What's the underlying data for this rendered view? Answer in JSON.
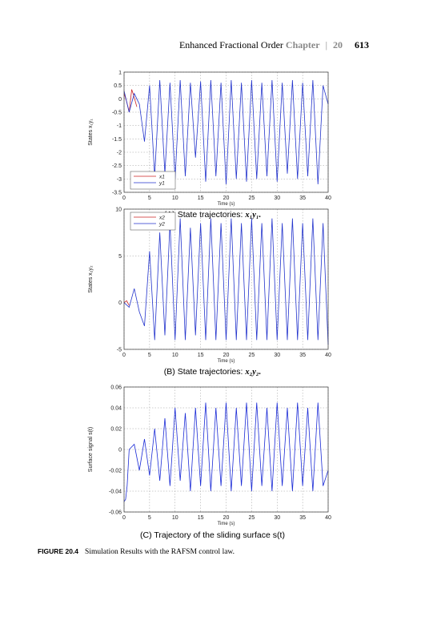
{
  "header": {
    "title": "Enhanced Fractional Order",
    "chapter_label": "Chapter",
    "chapter_number": "20",
    "page_number": "613"
  },
  "figure": {
    "label": "FIGURE 20.4",
    "caption": "Simulation Results with the RAFSM control law."
  },
  "panels": [
    {
      "caption_prefix": "(A) State trajectories: ",
      "caption_math": "x₁y₁.",
      "caption_plain": ""
    },
    {
      "caption_prefix": "(B) State trajectories: ",
      "caption_math": "x₂y₂.",
      "caption_plain": ""
    },
    {
      "caption_prefix": "",
      "caption_math": "",
      "caption_plain": "(C) Trajectory of the sliding surface s(t)"
    }
  ],
  "chart_data": [
    {
      "type": "line",
      "xlabel": "Time (s)",
      "ylabel": "States x₁y₁",
      "xlim": [
        0,
        40
      ],
      "ylim": [
        -3.5,
        1
      ],
      "xticks": [
        "0",
        "5",
        "10",
        "15",
        "20",
        "25",
        "30",
        "35",
        "40"
      ],
      "yticks": [
        "1",
        "0.5",
        "0",
        "-0.5",
        "-1",
        "-1.5",
        "-2",
        "-2.5",
        "-3",
        "-3.5"
      ],
      "grid": true,
      "legend_position": "bottom-left",
      "series": [
        {
          "name": "x1",
          "color": "#cc2222",
          "x": [
            0,
            0.5,
            1.0,
            1.5,
            2.0,
            2.5
          ],
          "y": [
            0.2,
            -0.1,
            -0.5,
            0.35,
            0.05,
            -0.3
          ]
        },
        {
          "name": "y1",
          "color": "#2233cc",
          "x": [
            0,
            1,
            2,
            3,
            4,
            5,
            6,
            7,
            8,
            9,
            10,
            11,
            12,
            13,
            14,
            15,
            16,
            17,
            18,
            19,
            20,
            21,
            22,
            23,
            24,
            25,
            26,
            27,
            28,
            29,
            30,
            31,
            32,
            33,
            34,
            35,
            36,
            37,
            38,
            39,
            40
          ],
          "y": [
            0.3,
            -0.5,
            0.2,
            -0.2,
            -1.6,
            0.5,
            -2.9,
            0.7,
            -2.8,
            0.6,
            -3.0,
            0.7,
            -2.9,
            0.6,
            -2.2,
            0.65,
            -3.1,
            0.7,
            -2.9,
            0.6,
            -3.2,
            0.7,
            -3.0,
            0.6,
            -3.1,
            0.7,
            -3.0,
            0.6,
            -2.9,
            0.7,
            -3.1,
            0.6,
            -2.8,
            0.7,
            -3.0,
            0.6,
            -2.9,
            0.7,
            -3.2,
            0.5,
            -0.2
          ]
        }
      ]
    },
    {
      "type": "line",
      "xlabel": "Time (s)",
      "ylabel": "States x₂y₂",
      "xlim": [
        0,
        40
      ],
      "ylim": [
        -5,
        10
      ],
      "xticks": [
        "0",
        "5",
        "10",
        "15",
        "20",
        "25",
        "30",
        "35",
        "40"
      ],
      "yticks": [
        "10",
        "5",
        "0",
        "-5"
      ],
      "grid": true,
      "legend_position": "top-left",
      "series": [
        {
          "name": "x2",
          "color": "#cc2222",
          "x": [
            0,
            0.5,
            1.0
          ],
          "y": [
            0.0,
            0.2,
            -0.3
          ]
        },
        {
          "name": "y2",
          "color": "#2233cc",
          "x": [
            0,
            1,
            2,
            3,
            4,
            5,
            6,
            7,
            8,
            9,
            10,
            11,
            12,
            13,
            14,
            15,
            16,
            17,
            18,
            19,
            20,
            21,
            22,
            23,
            24,
            25,
            26,
            27,
            28,
            29,
            30,
            31,
            32,
            33,
            34,
            35,
            36,
            37,
            38,
            39,
            40
          ],
          "y": [
            0.0,
            -0.5,
            1.5,
            -1.0,
            -2.5,
            5.5,
            -4.0,
            7.5,
            -3.5,
            8.5,
            -4.0,
            9.0,
            -4.0,
            8.0,
            -3.5,
            8.5,
            -4.0,
            9.0,
            -4.0,
            8.5,
            -4.0,
            9.0,
            -4.0,
            8.5,
            -4.0,
            9.0,
            -4.0,
            8.5,
            -4.0,
            9.0,
            -4.0,
            8.5,
            -4.0,
            9.0,
            -4.0,
            8.5,
            -4.0,
            9.0,
            -4.0,
            8.5,
            -4.5
          ]
        }
      ]
    },
    {
      "type": "line",
      "xlabel": "Time (s)",
      "ylabel": "Surface signal s(t)",
      "xlim": [
        0,
        40
      ],
      "ylim": [
        -0.06,
        0.06
      ],
      "xticks": [
        "0",
        "5",
        "10",
        "15",
        "20",
        "25",
        "30",
        "35",
        "40"
      ],
      "yticks": [
        "0.06",
        "0.04",
        "0.02",
        "0",
        "-0.02",
        "-0.04",
        "-0.06"
      ],
      "grid": true,
      "legend_position": "none",
      "series": [
        {
          "name": "",
          "color": "#1a2ad6",
          "x": [
            0,
            0.3,
            0.6,
            1.0,
            2,
            3,
            4,
            5,
            6,
            7,
            8,
            9,
            10,
            11,
            12,
            13,
            14,
            15,
            16,
            17,
            18,
            19,
            20,
            21,
            22,
            23,
            24,
            25,
            26,
            27,
            28,
            29,
            30,
            31,
            32,
            33,
            34,
            35,
            36,
            37,
            38,
            39,
            40
          ],
          "y": [
            -0.05,
            -0.048,
            -0.035,
            0.0,
            0.005,
            -0.02,
            0.01,
            -0.025,
            0.02,
            -0.03,
            0.03,
            -0.035,
            0.04,
            -0.03,
            0.035,
            -0.04,
            0.04,
            -0.035,
            0.045,
            -0.04,
            0.04,
            -0.035,
            0.045,
            -0.04,
            0.04,
            -0.035,
            0.045,
            -0.04,
            0.045,
            -0.035,
            0.04,
            -0.04,
            0.045,
            -0.035,
            0.04,
            -0.04,
            0.045,
            -0.035,
            0.04,
            -0.04,
            0.045,
            -0.035,
            -0.02
          ]
        }
      ]
    }
  ]
}
